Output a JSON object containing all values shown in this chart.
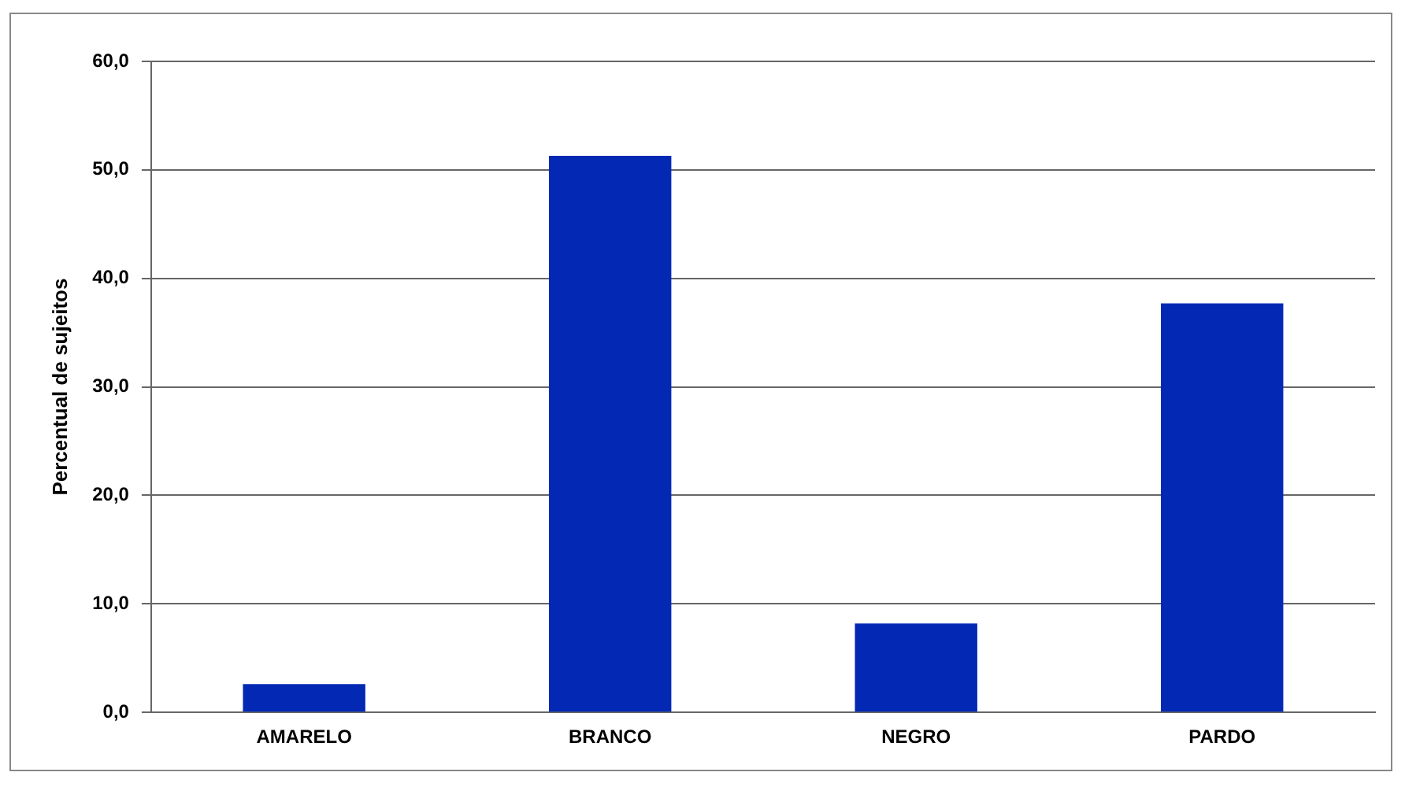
{
  "chart_data": {
    "type": "bar",
    "ylabel": "Percentual de sujeitos",
    "categories": [
      "AMARELO",
      "BRANCO",
      "NEGRO",
      "PARDO"
    ],
    "values": [
      2.6,
      51.3,
      8.2,
      37.7
    ],
    "color": "#0328b4",
    "ylim": [
      0,
      60
    ],
    "yticks": [
      {
        "value": 0,
        "label": "0,0"
      },
      {
        "value": 10,
        "label": "10,0"
      },
      {
        "value": 20,
        "label": "20,0"
      },
      {
        "value": 30,
        "label": "30,0"
      },
      {
        "value": 40,
        "label": "40,0"
      },
      {
        "value": 50,
        "label": "50,0"
      },
      {
        "value": 60,
        "label": "60,0"
      }
    ],
    "grid": "y",
    "legend": false
  }
}
